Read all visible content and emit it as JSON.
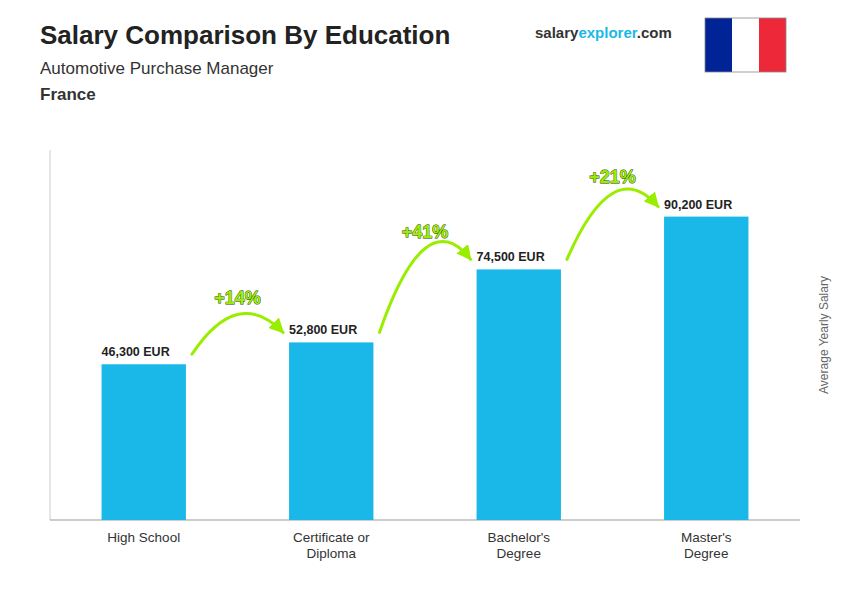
{
  "chart_data": {
    "type": "bar",
    "title": "Salary Comparison By Education",
    "subtitle": "Automotive Purchase Manager",
    "country": "France",
    "brand": [
      "salary",
      "explorer",
      ".com"
    ],
    "ylabel": "Average Yearly Salary",
    "categories": [
      "High School",
      "Certificate or\nDiploma",
      "Bachelor's\nDegree",
      "Master's\nDegree"
    ],
    "values": [
      46300,
      52800,
      74500,
      90200
    ],
    "value_labels": [
      "46,300 EUR",
      "52,800 EUR",
      "74,500 EUR",
      "90,200 EUR"
    ],
    "data_labels": true,
    "annotations": [
      "+14%",
      "+41%",
      "+21%"
    ],
    "annotation_color": "#99ee00",
    "color": "#1ab8e8",
    "flag_colors": [
      "#002395",
      "#ffffff",
      "#ED2939"
    ],
    "ylim": [
      0,
      110000
    ],
    "grid": false,
    "tick_labels": "x"
  }
}
